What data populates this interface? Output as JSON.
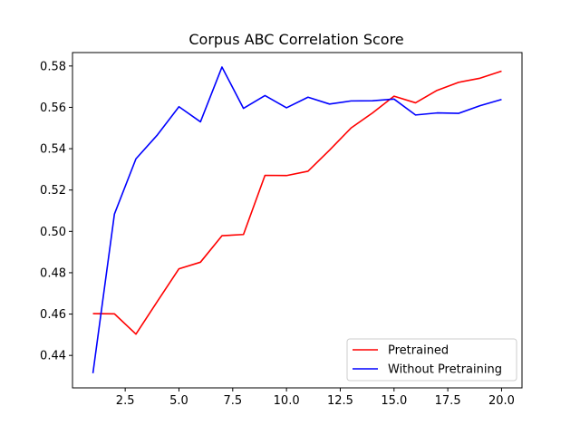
{
  "chart_data": {
    "type": "line",
    "title": "Corpus ABC Correlation Score",
    "xlabel": "",
    "ylabel": "",
    "xlim": [
      0.05,
      20.95
    ],
    "ylim": [
      0.4243,
      0.5865
    ],
    "xticks": [
      2.5,
      5.0,
      7.5,
      10.0,
      12.5,
      15.0,
      17.5,
      20.0
    ],
    "xtick_labels": [
      "2.5",
      "5.0",
      "7.5",
      "10.0",
      "12.5",
      "15.0",
      "17.5",
      "20.0"
    ],
    "yticks": [
      0.44,
      0.46,
      0.48,
      0.5,
      0.52,
      0.54,
      0.56,
      0.58
    ],
    "ytick_labels": [
      "0.44",
      "0.46",
      "0.48",
      "0.50",
      "0.52",
      "0.54",
      "0.56",
      "0.58"
    ],
    "grid": false,
    "legend_position": "lower-right",
    "x": [
      1,
      2,
      3,
      4,
      5,
      6,
      7,
      8,
      9,
      10,
      11,
      12,
      13,
      14,
      15,
      16,
      17,
      18,
      19,
      20
    ],
    "series": [
      {
        "name": "Pretrained",
        "color": "#ff0000",
        "values": [
          0.4602,
          0.4601,
          0.4503,
          0.4662,
          0.4819,
          0.4851,
          0.4979,
          0.4985,
          0.5271,
          0.527,
          0.5291,
          0.5393,
          0.55,
          0.5573,
          0.5654,
          0.5622,
          0.5682,
          0.5721,
          0.5741,
          0.5775
        ]
      },
      {
        "name": "Without Pretraining",
        "color": "#0000ff",
        "values": [
          0.4314,
          0.5084,
          0.5351,
          0.5467,
          0.5603,
          0.553,
          0.5795,
          0.5595,
          0.5657,
          0.5598,
          0.5649,
          0.5616,
          0.5631,
          0.5632,
          0.564,
          0.5563,
          0.5573,
          0.5571,
          0.5608,
          0.5638
        ]
      }
    ]
  }
}
